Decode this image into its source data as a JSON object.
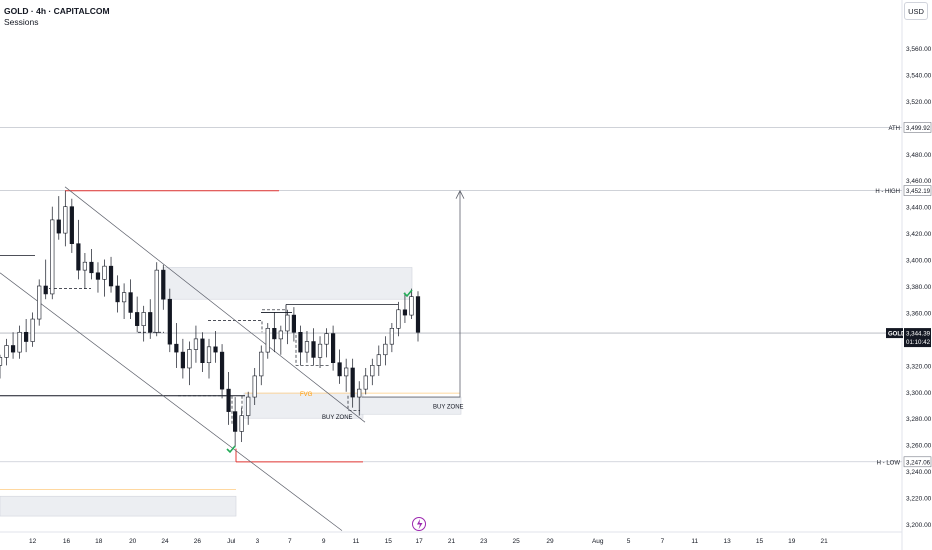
{
  "header": {
    "title": "GOLD · 4h · CAPITALCOM",
    "subtitle": "Sessions"
  },
  "currency_button": "USD",
  "colors": {
    "up": "#131722",
    "down": "#131722",
    "accent_red": "#e53935",
    "orange": "#ff9800",
    "green": "#22ab57",
    "purple": "#9c27b0"
  },
  "lightning_icon": "lightning-icon",
  "chart_data": {
    "type": "candlestick",
    "title": "GOLD · 4h · CAPITALCOM",
    "ylim": [
      3190,
      3580
    ],
    "y_ticks": [
      3200,
      3220,
      3240,
      3260,
      3280,
      3300,
      3320,
      3340,
      3360,
      3380,
      3400,
      3420,
      3440,
      3460,
      3480,
      3500,
      3520,
      3540,
      3560
    ],
    "x_ticks": [
      {
        "label": "12",
        "t": 2.7
      },
      {
        "label": "16",
        "t": 4.9
      },
      {
        "label": "18",
        "t": 7
      },
      {
        "label": "20",
        "t": 9.2
      },
      {
        "label": "24",
        "t": 11.3
      },
      {
        "label": "26",
        "t": 13.4
      },
      {
        "label": "Jul",
        "t": 15.6
      },
      {
        "label": "3",
        "t": 17.3
      },
      {
        "label": "7",
        "t": 19.4
      },
      {
        "label": "9",
        "t": 21.6
      },
      {
        "label": "11",
        "t": 23.7
      },
      {
        "label": "15",
        "t": 25.8
      },
      {
        "label": "17",
        "t": 27.8
      },
      {
        "label": "21",
        "t": 29.9
      },
      {
        "label": "23",
        "t": 32
      },
      {
        "label": "25",
        "t": 34.1
      },
      {
        "label": "29",
        "t": 36.3
      },
      {
        "label": "Aug",
        "t": 39.4
      },
      {
        "label": "5",
        "t": 41.4
      },
      {
        "label": "7",
        "t": 43.6
      },
      {
        "label": "11",
        "t": 45.7
      },
      {
        "label": "13",
        "t": 47.8
      },
      {
        "label": "15",
        "t": 49.9
      },
      {
        "label": "19",
        "t": 52
      },
      {
        "label": "21",
        "t": 54.1
      }
    ],
    "price_labels": [
      {
        "label": "ATH",
        "value": "3,499.92",
        "price": 3499.92
      },
      {
        "label": "H - HIGH",
        "value": "3,452.19",
        "price": 3452.19
      },
      {
        "label": "H - LOW",
        "value": "3,247.06",
        "price": 3247.06
      }
    ],
    "current": {
      "symbol": "GOLD",
      "price": 3344.39,
      "price_text": "3,344.39",
      "countdown": "01:10:42"
    },
    "annotations": [
      {
        "text": "FVG",
        "price": 3299,
        "t": 18.5
      },
      {
        "text": "BUY ZONE",
        "price": 3281,
        "t": 20.5
      },
      {
        "text": "BUY ZONE",
        "price": 3289,
        "t": 27.3
      }
    ],
    "candles": [
      [
        3320,
        3328,
        3310,
        3326
      ],
      [
        3326,
        3340,
        3320,
        3335
      ],
      [
        3335,
        3345,
        3325,
        3330
      ],
      [
        3330,
        3350,
        3325,
        3345
      ],
      [
        3345,
        3355,
        3330,
        3338
      ],
      [
        3338,
        3360,
        3334,
        3355
      ],
      [
        3355,
        3385,
        3350,
        3380
      ],
      [
        3380,
        3400,
        3370,
        3374
      ],
      [
        3374,
        3440,
        3370,
        3430
      ],
      [
        3430,
        3448,
        3415,
        3420
      ],
      [
        3420,
        3452,
        3410,
        3440
      ],
      [
        3440,
        3446,
        3405,
        3412
      ],
      [
        3412,
        3430,
        3385,
        3392
      ],
      [
        3392,
        3405,
        3378,
        3398
      ],
      [
        3398,
        3408,
        3385,
        3390
      ],
      [
        3390,
        3398,
        3375,
        3385
      ],
      [
        3385,
        3400,
        3372,
        3395
      ],
      [
        3395,
        3402,
        3375,
        3380
      ],
      [
        3380,
        3388,
        3360,
        3368
      ],
      [
        3368,
        3382,
        3355,
        3375
      ],
      [
        3375,
        3385,
        3355,
        3360
      ],
      [
        3360,
        3372,
        3345,
        3350
      ],
      [
        3350,
        3365,
        3338,
        3360
      ],
      [
        3360,
        3370,
        3340,
        3345
      ],
      [
        3345,
        3398,
        3342,
        3392
      ],
      [
        3392,
        3396,
        3362,
        3370
      ],
      [
        3370,
        3378,
        3330,
        3336
      ],
      [
        3336,
        3352,
        3318,
        3330
      ],
      [
        3330,
        3340,
        3310,
        3318
      ],
      [
        3318,
        3338,
        3305,
        3332
      ],
      [
        3332,
        3350,
        3322,
        3340
      ],
      [
        3340,
        3345,
        3315,
        3322
      ],
      [
        3322,
        3340,
        3310,
        3334
      ],
      [
        3334,
        3346,
        3322,
        3330
      ],
      [
        3330,
        3336,
        3295,
        3302
      ],
      [
        3302,
        3315,
        3275,
        3285
      ],
      [
        3285,
        3296,
        3258,
        3270
      ],
      [
        3270,
        3288,
        3262,
        3282
      ],
      [
        3282,
        3300,
        3275,
        3296
      ],
      [
        3296,
        3318,
        3290,
        3312
      ],
      [
        3312,
        3335,
        3305,
        3330
      ],
      [
        3330,
        3352,
        3325,
        3348
      ],
      [
        3348,
        3360,
        3330,
        3340
      ],
      [
        3340,
        3350,
        3328,
        3346
      ],
      [
        3346,
        3362,
        3336,
        3358
      ],
      [
        3358,
        3364,
        3338,
        3345
      ],
      [
        3345,
        3350,
        3320,
        3330
      ],
      [
        3330,
        3346,
        3322,
        3338
      ],
      [
        3338,
        3348,
        3320,
        3326
      ],
      [
        3326,
        3342,
        3318,
        3336
      ],
      [
        3336,
        3348,
        3326,
        3344
      ],
      [
        3344,
        3350,
        3316,
        3322
      ],
      [
        3322,
        3332,
        3306,
        3312
      ],
      [
        3312,
        3325,
        3300,
        3318
      ],
      [
        3318,
        3325,
        3288,
        3296
      ],
      [
        3296,
        3308,
        3282,
        3302
      ],
      [
        3302,
        3318,
        3298,
        3312
      ],
      [
        3312,
        3325,
        3305,
        3320
      ],
      [
        3320,
        3335,
        3312,
        3328
      ],
      [
        3328,
        3342,
        3320,
        3336
      ],
      [
        3336,
        3352,
        3330,
        3348
      ],
      [
        3348,
        3368,
        3342,
        3362
      ],
      [
        3362,
        3375,
        3352,
        3358
      ],
      [
        3358,
        3378,
        3355,
        3372
      ],
      [
        3372,
        3376,
        3338,
        3345
      ]
    ],
    "levels": [
      {
        "name": "ATH",
        "price": 3499.92
      },
      {
        "name": "H - HIGH",
        "price": 3452.19
      },
      {
        "name": "H - LOW",
        "price": 3247.06
      },
      {
        "name": "current",
        "price": 3344.39
      }
    ]
  }
}
